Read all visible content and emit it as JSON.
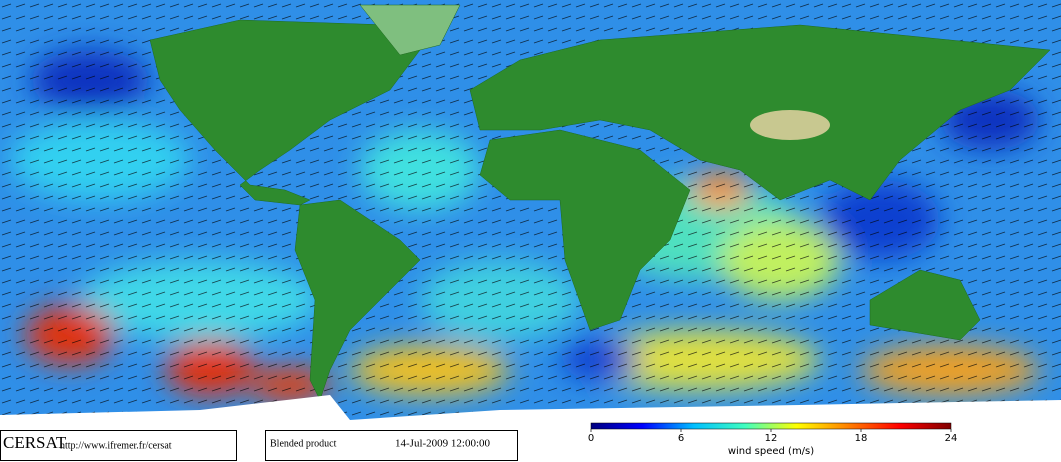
{
  "credit": {
    "org": "CERSAT",
    "url": "http://www.ifremer.fr/cersat"
  },
  "product": {
    "name": "Blended product",
    "date": "14-Jul-2009 12:00:00"
  },
  "colorbar": {
    "label": "wind speed (m/s)",
    "lim": [
      0,
      24
    ],
    "ticks": [
      0,
      6,
      12,
      18,
      24
    ],
    "colors": [
      "#00007f",
      "#0000ff",
      "#00bfff",
      "#40ffbf",
      "#ffff00",
      "#ff8000",
      "#ff0000",
      "#7f0000"
    ]
  }
}
